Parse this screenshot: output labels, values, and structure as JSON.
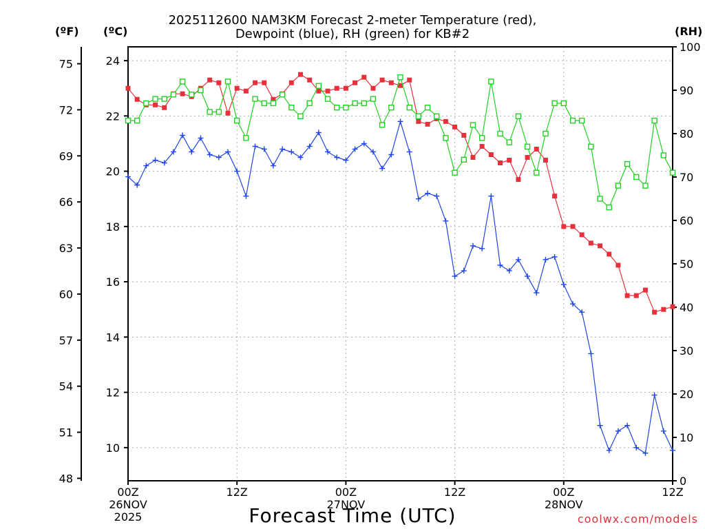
{
  "chart_data": {
    "type": "line",
    "title_lines": [
      "2025112600 NAM3KM Forecast 2-meter Temperature (red),",
      "Dewpoint (blue), RH (green) for KB#2"
    ],
    "units": {
      "left_f": "(ºF)",
      "left_c": "(ºC)",
      "right": "(RH)"
    },
    "xlabel": "Forecast Time (UTC)",
    "credit": "coolwx.com/models",
    "x_ticks": [
      {
        "hour": 0,
        "lines": [
          "00Z",
          "26NOV",
          "2025"
        ]
      },
      {
        "hour": 12,
        "lines": [
          "12Z"
        ]
      },
      {
        "hour": 24,
        "lines": [
          "00Z",
          "27NOV"
        ]
      },
      {
        "hour": 36,
        "lines": [
          "12Z"
        ]
      },
      {
        "hour": 48,
        "lines": [
          "00Z",
          "28NOV"
        ]
      },
      {
        "hour": 60,
        "lines": [
          "12Z"
        ]
      }
    ],
    "x_range": [
      0,
      60
    ],
    "yC_range": [
      8.8,
      24.5
    ],
    "yC_ticks": [
      "10",
      "12",
      "14",
      "16",
      "18",
      "20",
      "22",
      "24"
    ],
    "yF_ticks": [
      "48",
      "51",
      "54",
      "57",
      "60",
      "63",
      "66",
      "69",
      "72",
      "75"
    ],
    "rh_range": [
      0,
      100
    ],
    "rh_ticks": [
      "0",
      "10",
      "20",
      "30",
      "40",
      "50",
      "60",
      "70",
      "80",
      "90",
      "100"
    ],
    "grid": true,
    "series": [
      {
        "name": "Temperature (°C)",
        "axis": "C",
        "color": "#e8303a",
        "marker": "filled-square",
        "x": [
          0,
          1,
          2,
          3,
          4,
          5,
          6,
          7,
          8,
          9,
          10,
          11,
          12,
          13,
          14,
          15,
          16,
          17,
          18,
          19,
          20,
          21,
          22,
          23,
          24,
          25,
          26,
          27,
          28,
          29,
          30,
          31,
          32,
          33,
          34,
          35,
          36,
          37,
          38,
          39,
          40,
          41,
          42,
          43,
          44,
          45,
          46,
          47,
          48,
          49,
          50,
          51,
          52,
          53,
          54,
          55,
          56,
          57,
          58,
          59,
          60
        ],
        "values": [
          23.0,
          22.6,
          22.4,
          22.4,
          22.3,
          22.8,
          22.8,
          22.7,
          23.0,
          23.3,
          23.2,
          22.1,
          23.0,
          22.9,
          23.2,
          23.2,
          22.6,
          22.8,
          23.2,
          23.5,
          23.3,
          22.9,
          22.9,
          23.0,
          23.0,
          23.2,
          23.4,
          23.0,
          23.3,
          23.2,
          23.1,
          23.3,
          21.8,
          21.7,
          21.9,
          21.8,
          21.6,
          21.3,
          20.5,
          20.9,
          20.6,
          20.3,
          20.4,
          19.7,
          20.5,
          20.8,
          20.4,
          19.1,
          18.0,
          18.0,
          17.7,
          17.4,
          17.3,
          17.0,
          16.6,
          15.5,
          15.5,
          15.7,
          14.9,
          15.0,
          15.1
        ]
      },
      {
        "name": "Dewpoint (°C)",
        "axis": "C",
        "color": "#1f45e0",
        "marker": "plus",
        "x": [
          0,
          1,
          2,
          3,
          4,
          5,
          6,
          7,
          8,
          9,
          10,
          11,
          12,
          13,
          14,
          15,
          16,
          17,
          18,
          19,
          20,
          21,
          22,
          23,
          24,
          25,
          26,
          27,
          28,
          29,
          30,
          31,
          32,
          33,
          34,
          35,
          36,
          37,
          38,
          39,
          40,
          41,
          42,
          43,
          44,
          45,
          46,
          47,
          48,
          49,
          50,
          51,
          52,
          53,
          54,
          55,
          56,
          57,
          58,
          59,
          60
        ],
        "values": [
          19.8,
          19.5,
          20.2,
          20.4,
          20.3,
          20.7,
          21.3,
          20.7,
          21.2,
          20.6,
          20.5,
          20.7,
          20.0,
          19.1,
          20.9,
          20.8,
          20.2,
          20.8,
          20.7,
          20.5,
          20.9,
          21.4,
          20.7,
          20.5,
          20.4,
          20.8,
          21.0,
          20.7,
          20.1,
          20.6,
          21.8,
          20.7,
          19.0,
          19.2,
          19.1,
          18.2,
          16.2,
          16.4,
          17.3,
          17.2,
          19.1,
          16.6,
          16.4,
          16.8,
          16.2,
          15.6,
          16.8,
          16.9,
          15.9,
          15.2,
          14.9,
          13.4,
          10.8,
          9.9,
          10.6,
          10.8,
          10.0,
          9.8,
          11.9,
          10.6,
          9.9
        ]
      },
      {
        "name": "RH (%)",
        "axis": "RH",
        "color": "#22d022",
        "marker": "open-square",
        "x": [
          0,
          1,
          2,
          3,
          4,
          5,
          6,
          7,
          8,
          9,
          10,
          11,
          12,
          13,
          14,
          15,
          16,
          17,
          18,
          19,
          20,
          21,
          22,
          23,
          24,
          25,
          26,
          27,
          28,
          29,
          30,
          31,
          32,
          33,
          34,
          35,
          36,
          37,
          38,
          39,
          40,
          41,
          42,
          43,
          44,
          45,
          46,
          47,
          48,
          49,
          50,
          51,
          52,
          53,
          54,
          55,
          56,
          57,
          58,
          59,
          60
        ],
        "values": [
          83,
          83,
          87,
          88,
          88,
          89,
          92,
          89,
          90,
          85,
          85,
          92,
          83,
          79,
          88,
          87,
          87,
          89,
          86,
          84,
          87,
          91,
          88,
          86,
          86,
          87,
          87,
          88,
          82,
          86,
          93,
          86,
          84,
          86,
          84,
          79,
          71,
          74,
          82,
          79,
          92,
          80,
          78,
          84,
          77,
          71,
          80,
          87,
          87,
          83,
          83,
          77,
          65,
          63,
          68,
          73,
          70,
          68,
          83,
          75,
          71
        ]
      }
    ]
  }
}
